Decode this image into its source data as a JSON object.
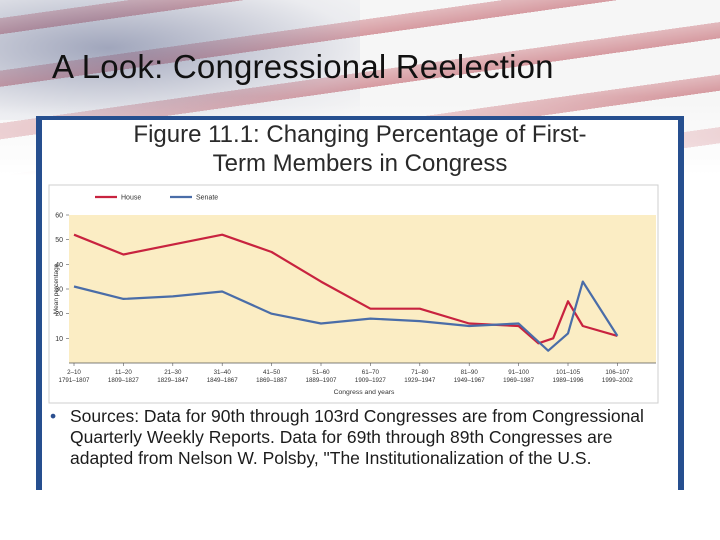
{
  "slide": {
    "title": "A Look: Congressional Reelection"
  },
  "figure": {
    "title_line1": "Figure 11.1: Changing Percentage of First-",
    "title_line2": "Term Members in Congress"
  },
  "sources": {
    "bullet": "•",
    "text": "Sources: Data for 90th through 103rd Congresses are from Congressional Quarterly Weekly Reports. Data for 69th through 89th Congresses are adapted from Nelson W. Polsby, \"The Institutionalization of the U.S."
  },
  "chart_data": {
    "type": "line",
    "xlabel": "Congress and years",
    "ylabel": "Mean percentage",
    "ylim": [
      0,
      60
    ],
    "yticks": [
      10,
      20,
      30,
      40,
      50,
      60
    ],
    "grid": false,
    "legend_position": "top-left",
    "categories": [
      {
        "congress": "2–10",
        "years": "1791–1807"
      },
      {
        "congress": "11–20",
        "years": "1809–1827"
      },
      {
        "congress": "21–30",
        "years": "1829–1847"
      },
      {
        "congress": "31–40",
        "years": "1849–1867"
      },
      {
        "congress": "41–50",
        "years": "1869–1887"
      },
      {
        "congress": "51–60",
        "years": "1889–1907"
      },
      {
        "congress": "61–70",
        "years": "1909–1927"
      },
      {
        "congress": "71–80",
        "years": "1929–1947"
      },
      {
        "congress": "81–90",
        "years": "1949–1967"
      },
      {
        "congress": "91–100",
        "years": "1969–1987"
      },
      {
        "congress": "101–105",
        "years": "1989–1996"
      },
      {
        "congress": "106–107",
        "years": "1999–2002"
      }
    ],
    "series": [
      {
        "name": "House",
        "color": "#c8233f",
        "x": [
          0,
          1,
          2,
          3,
          4,
          5,
          6,
          7,
          8,
          9,
          9.4,
          9.7,
          10,
          10.3,
          11
        ],
        "values": [
          52,
          44,
          48,
          52,
          45,
          33,
          22,
          22,
          16,
          15,
          8,
          10,
          25,
          15,
          11
        ]
      },
      {
        "name": "Senate",
        "color": "#4a6da8",
        "x": [
          0,
          1,
          2,
          3,
          4,
          5,
          6,
          7,
          8,
          9,
          9.6,
          10,
          10.3,
          11
        ],
        "values": [
          31,
          26,
          27,
          29,
          20,
          16,
          18,
          17,
          15,
          16,
          5,
          12,
          33,
          11
        ]
      }
    ],
    "colors": {
      "plot_background": "#fbedc4",
      "panel_border": "#264f8f"
    }
  }
}
